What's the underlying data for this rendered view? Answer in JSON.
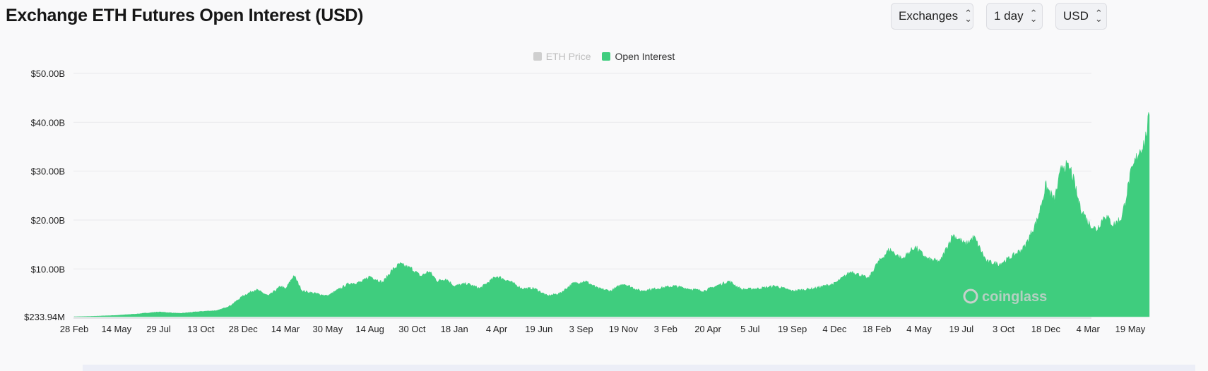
{
  "page": {
    "title": "Exchange ETH Futures Open Interest (USD)"
  },
  "controls": {
    "exchanges_label": "Exchanges",
    "interval_label": "1 day",
    "currency_label": "USD"
  },
  "colors": {
    "open_interest": "#3fcd7e",
    "eth_price_disabled": "#cfcfcf",
    "grid": "#e9e9ec",
    "watermark": "#c8d0cc"
  },
  "watermark": {
    "text": "coinglass"
  },
  "chart_data": {
    "type": "area",
    "legend": [
      {
        "name": "ETH Price",
        "enabled": false
      },
      {
        "name": "Open Interest",
        "enabled": true
      }
    ],
    "legend_position": "top-center",
    "y_axis": {
      "ticks": [
        {
          "label": "$233.94M",
          "value": 0.23394
        },
        {
          "label": "$10.00B",
          "value": 10
        },
        {
          "label": "$20.00B",
          "value": 20
        },
        {
          "label": "$30.00B",
          "value": 30
        },
        {
          "label": "$40.00B",
          "value": 40
        },
        {
          "label": "$50.00B",
          "value": 50
        }
      ],
      "unit": "billion USD",
      "range": [
        0.23394,
        50
      ]
    },
    "x_axis": {
      "tick_labels": [
        "28 Feb",
        "14 May",
        "29 Jul",
        "13 Oct",
        "28 Dec",
        "14 Mar",
        "30 May",
        "14 Aug",
        "30 Oct",
        "18 Jan",
        "4 Apr",
        "19 Jun",
        "3 Sep",
        "19 Nov",
        "3 Feb",
        "20 Apr",
        "5 Jul",
        "19 Sep",
        "4 Dec",
        "18 Feb",
        "4 May",
        "19 Jul",
        "3 Oct",
        "18 Dec",
        "4 Mar",
        "19 May"
      ],
      "tick_interval_days": 75
    },
    "grid": true,
    "series": [
      {
        "name": "Open Interest",
        "x_label_index": [
          0,
          0.4,
          1,
          1.5,
          2,
          2.5,
          3,
          3.4,
          3.7,
          4,
          4.3,
          4.6,
          4.9,
          5,
          5.2,
          5.4,
          5.7,
          6,
          6.2,
          6.5,
          6.8,
          7,
          7.3,
          7.5,
          7.7,
          8,
          8.2,
          8.4,
          8.6,
          8.8,
          9,
          9.3,
          9.6,
          10,
          10.3,
          10.6,
          10.9,
          11.2,
          11.5,
          11.8,
          12.1,
          12.4,
          12.7,
          13,
          13.4,
          13.8,
          14.2,
          14.5,
          14.9,
          15.2,
          15.5,
          15.8,
          16.2,
          16.6,
          17,
          17.5,
          18,
          18.4,
          18.8,
          19,
          19.3,
          19.6,
          19.9,
          20.2,
          20.5,
          20.8,
          21.1,
          21.3,
          21.6,
          21.9,
          22.2,
          22.5,
          22.8,
          23,
          23.2,
          23.4,
          23.6,
          23.8,
          24,
          24.2,
          24.4,
          24.6,
          24.8,
          25,
          25.2,
          25.35,
          25.45
        ],
        "values": [
          0.23394,
          0.3,
          0.5,
          0.8,
          1.2,
          0.9,
          1.3,
          1.5,
          2.5,
          4.5,
          5.8,
          4.5,
          6.5,
          5.8,
          8.7,
          5.5,
          5.0,
          4.5,
          5.5,
          7.0,
          7.3,
          8.5,
          7.2,
          9.5,
          11.0,
          10.0,
          8.5,
          9.5,
          7.5,
          8.0,
          6.5,
          7.0,
          6.0,
          8.5,
          7.5,
          6.0,
          6.0,
          4.5,
          5.0,
          7.0,
          7.5,
          6.0,
          5.5,
          7.0,
          5.5,
          6.0,
          6.5,
          6.0,
          5.5,
          6.5,
          7.5,
          5.8,
          6.0,
          6.5,
          5.5,
          6.0,
          7.0,
          9.5,
          8.0,
          11.0,
          14.0,
          12.0,
          14.5,
          12.0,
          11.5,
          17.0,
          15.0,
          16.5,
          11.5,
          11.0,
          12.5,
          14.5,
          20.0,
          27.0,
          24.0,
          31.5,
          30.0,
          23.0,
          19.5,
          18.0,
          21.0,
          19.0,
          20.5,
          29.0,
          34.0,
          36.0,
          41.5
        ]
      }
    ]
  }
}
